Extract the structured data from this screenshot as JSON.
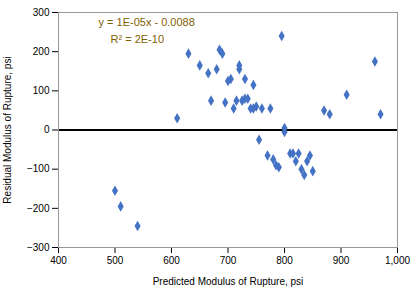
{
  "chart_data": {
    "type": "scatter",
    "x": [
      500,
      510,
      540,
      610,
      630,
      650,
      665,
      670,
      680,
      685,
      690,
      695,
      700,
      705,
      710,
      715,
      720,
      720,
      725,
      730,
      730,
      735,
      740,
      745,
      745,
      750,
      755,
      760,
      770,
      775,
      780,
      785,
      790,
      795,
      800,
      800,
      810,
      815,
      820,
      825,
      830,
      835,
      840,
      845,
      850,
      870,
      880,
      910,
      960,
      970
    ],
    "values": [
      -155,
      -195,
      -245,
      30,
      195,
      165,
      145,
      75,
      155,
      205,
      195,
      70,
      125,
      130,
      55,
      75,
      155,
      165,
      75,
      130,
      80,
      80,
      55,
      115,
      55,
      60,
      -25,
      55,
      -65,
      55,
      -75,
      -90,
      -95,
      240,
      -5,
      5,
      -60,
      -60,
      -80,
      -60,
      -100,
      -115,
      -80,
      -65,
      -105,
      50,
      40,
      90,
      175,
      40
    ],
    "color": "#4472C4",
    "marker": "diamond",
    "hlines": [
      {
        "value": 0,
        "color": "#000000"
      }
    ],
    "xlabel": "Predicted Modulus of Rupture, psi",
    "ylabel": "Residual Modulus of Rupture, psi",
    "xlim": [
      400,
      1000
    ],
    "ylim": [
      -300,
      300
    ],
    "xticks": [
      400,
      500,
      600,
      700,
      800,
      900,
      1000
    ],
    "yticks": [
      -300,
      -200,
      -100,
      0,
      100,
      200,
      300
    ],
    "annotations": [
      {
        "text": "y = 1E-05x - 0.0088",
        "color": "#7F6000"
      },
      {
        "text": "R² = 2E-10",
        "color": "#7F6000"
      }
    ],
    "grid": false
  }
}
